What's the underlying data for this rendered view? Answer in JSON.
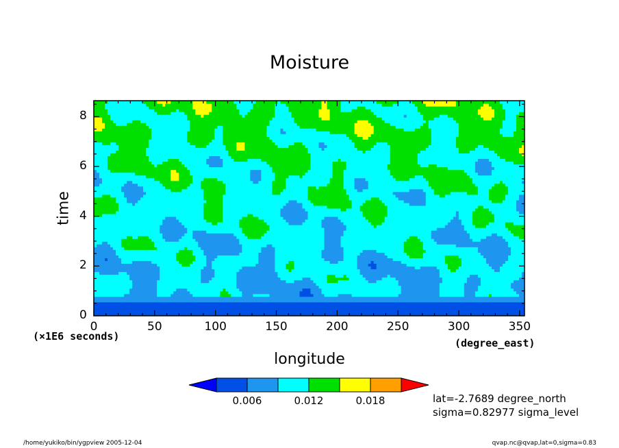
{
  "chart_data": {
    "type": "heatmap",
    "title": "Moisture",
    "xlabel": "longitude",
    "ylabel": "time",
    "x_units": "(degree_east)",
    "y_units": "(×1E6 seconds)",
    "xlim": [
      0,
      354
    ],
    "ylim": [
      0,
      8.64
    ],
    "x_ticks": [
      0,
      50,
      100,
      150,
      200,
      250,
      300,
      350
    ],
    "y_ticks": [
      0,
      2,
      4,
      6,
      8
    ],
    "colorbar": {
      "levels": [
        0.003,
        0.006,
        0.009,
        0.012,
        0.015,
        0.018,
        0.021
      ],
      "colors": [
        "#0000ff",
        "#0050e6",
        "#1e96f0",
        "#00ffff",
        "#00e000",
        "#ffff00",
        "#ffa000",
        "#ff0000"
      ],
      "tick_labels": [
        "0.006",
        "0.012",
        "0.018"
      ],
      "tick_values": [
        0.006,
        0.012,
        0.018
      ]
    },
    "annotations": [
      "lat=-2.7689 degree_north",
      "sigma=0.82977 sigma_level"
    ]
  },
  "footer": {
    "left": "/home/yukiko/bin/ygpview  2005-12-04",
    "right": "qvap.nc@qvap,lat=0,sigma=0.83"
  }
}
